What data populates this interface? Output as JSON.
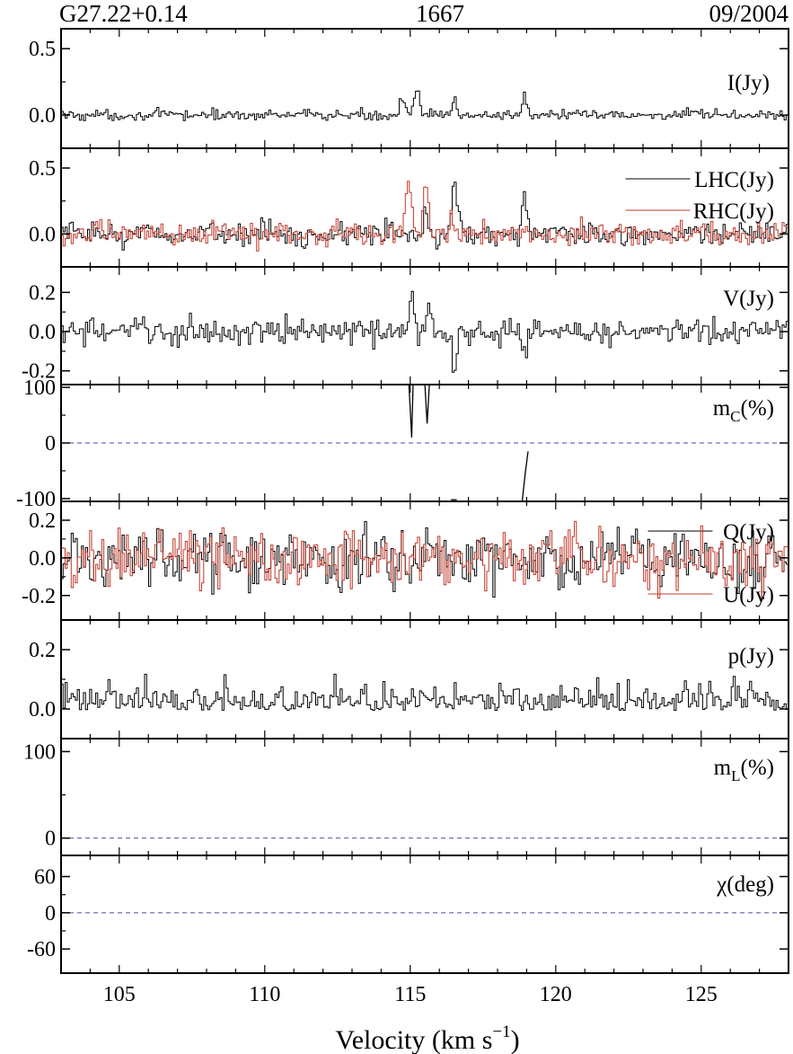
{
  "header": {
    "source": "G27.22+0.14",
    "frequency": "1667",
    "date": "09/2004"
  },
  "chart_data": {
    "type": "line",
    "layout": "stacked-panels",
    "x_axis": {
      "label": "Velocity (km s",
      "label_sup": "−1",
      "label_end": ")",
      "range": [
        103,
        128
      ],
      "ticks": [
        105,
        110,
        115,
        120,
        125
      ],
      "tick_labels": [
        "105",
        "110",
        "115",
        "120",
        "125"
      ]
    },
    "panels": [
      {
        "id": "I",
        "ylim": [
          -0.25,
          0.65
        ],
        "yticks": [
          0.0,
          0.5
        ],
        "ytick_labels": [
          "0.0",
          "0.5"
        ],
        "series": [
          {
            "label": "I(Jy)",
            "color": "#000000",
            "noise": 0.02,
            "features": [
              [
                114.7,
                0.09,
                0.14
              ],
              [
                115.2,
                0.08,
                0.18
              ],
              [
                116.5,
                0.07,
                0.12
              ],
              [
                118.9,
                0.08,
                0.16
              ]
            ]
          }
        ]
      },
      {
        "id": "LR",
        "ylim": [
          -0.25,
          0.65
        ],
        "yticks": [
          0.0,
          0.5
        ],
        "ytick_labels": [
          "0.0",
          "0.5"
        ],
        "series": [
          {
            "label": "LHC(Jy)",
            "color": "#000000",
            "noise": 0.045,
            "features": [
              [
                115.5,
                0.08,
                0.2
              ],
              [
                116.5,
                0.1,
                0.36
              ],
              [
                118.9,
                0.08,
                0.28
              ]
            ]
          },
          {
            "label": "RHC(Jy)",
            "color": "#c0392b",
            "noise": 0.045,
            "features": [
              [
                114.9,
                0.1,
                0.38
              ],
              [
                115.5,
                0.08,
                0.4
              ],
              [
                116.4,
                0.06,
                0.1
              ],
              [
                118.9,
                0.06,
                0.05
              ]
            ]
          }
        ]
      },
      {
        "id": "V",
        "ylim": [
          -0.27,
          0.33
        ],
        "yticks": [
          -0.2,
          0.0,
          0.2
        ],
        "ytick_labels": [
          "-0.2",
          "0.0",
          "0.2"
        ],
        "series": [
          {
            "label": "V(Jy)",
            "color": "#000000",
            "noise": 0.035,
            "features": [
              [
                115.0,
                0.08,
                0.2
              ],
              [
                115.6,
                0.08,
                0.14
              ],
              [
                116.5,
                0.08,
                -0.22
              ],
              [
                118.9,
                0.08,
                -0.12
              ]
            ]
          }
        ]
      },
      {
        "id": "mc",
        "ylim": [
          -105,
          105
        ],
        "yticks": [
          -100,
          0,
          100
        ],
        "ytick_labels": [
          "-100",
          "0",
          "100"
        ],
        "zero_line": true,
        "series": [
          {
            "label": "m",
            "label_sub": "C",
            "label_end": "(%)",
            "color": "#000000",
            "points": [
              [
                114.95,
                108
              ],
              [
                115.0,
                60
              ],
              [
                115.05,
                10
              ],
              [
                115.1,
                108
              ],
              [
                115.5,
                108
              ],
              [
                115.58,
                35
              ],
              [
                115.66,
                108
              ],
              [
                116.4,
                -102
              ],
              [
                116.6,
                -102
              ],
              [
                118.85,
                -104
              ],
              [
                118.95,
                -55
              ],
              [
                119.05,
                -15
              ]
            ]
          }
        ]
      },
      {
        "id": "QU",
        "ylim": [
          -0.33,
          0.3
        ],
        "yticks": [
          -0.2,
          0.0,
          0.2
        ],
        "ytick_labels": [
          "-0.2",
          "0.0",
          "0.2"
        ],
        "series": [
          {
            "label": "Q(Jy)",
            "color": "#000000",
            "noise": 0.08,
            "features": []
          },
          {
            "label": "U(Jy)",
            "color": "#c0392b",
            "noise": 0.08,
            "features": []
          }
        ]
      },
      {
        "id": "p",
        "ylim": [
          -0.1,
          0.3
        ],
        "yticks": [
          0.0,
          0.2
        ],
        "ytick_labels": [
          "0.0",
          "0.2"
        ],
        "series": [
          {
            "label": "p(Jy)",
            "color": "#000000",
            "noise": 0.045,
            "offset": 0.02,
            "features": []
          }
        ]
      },
      {
        "id": "mL",
        "ylim": [
          -20,
          115
        ],
        "yticks": [
          0,
          100
        ],
        "ytick_labels": [
          "0",
          "100"
        ],
        "zero_line": true,
        "series": [
          {
            "label": "m",
            "label_sub": "L",
            "label_end": "(%)",
            "color": "#000000",
            "points": []
          }
        ]
      },
      {
        "id": "chi",
        "ylim": [
          -100,
          95
        ],
        "yticks": [
          -60,
          0,
          60
        ],
        "ytick_labels": [
          "-60",
          "0",
          "60"
        ],
        "zero_line": true,
        "series": [
          {
            "label": "χ(deg)",
            "color": "#000000",
            "points": []
          }
        ]
      }
    ]
  }
}
